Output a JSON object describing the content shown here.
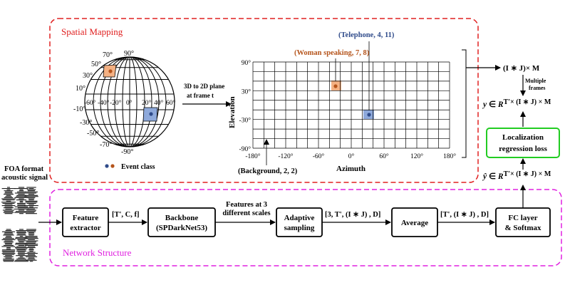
{
  "colors": {
    "spatial_border": "#e02020",
    "network_border": "#e020e0",
    "loss_border": "#22cc22",
    "telephone": "#2f4b8a",
    "woman": "#b5541b",
    "telephone_fill": "#8ea9db",
    "woman_fill": "#f4b183"
  },
  "spatial_section": {
    "title": "Spatial Mapping"
  },
  "network_section": {
    "title": "Network Structure"
  },
  "sphere": {
    "top_label": "90°",
    "bottom_label": "-90°",
    "lat_labels_left": [
      "70°",
      "50°",
      "30°",
      "10°",
      "-10°",
      "-30°",
      "-50°",
      "-70°"
    ],
    "lon_labels": [
      "-60°",
      "-40°",
      "-20°",
      "0°",
      "20°",
      "40°",
      "60°"
    ],
    "event_class_label": "Event class"
  },
  "projection_arrow_label": [
    "3D to 2D plane",
    "at frame t"
  ],
  "grid": {
    "y_label": "Elevation",
    "x_label": "Azimuth",
    "y_ticks": [
      "90°",
      "30°",
      "-30°",
      "-90°"
    ],
    "x_ticks": [
      "-180°",
      "-120°",
      "-60°",
      "0°",
      "60°",
      "120°",
      "180°"
    ],
    "annotations": {
      "telephone": "(Telephone, 4, 11)",
      "woman": "(Woman speaking, 7, 8)",
      "background": "(Background, 2, 2)"
    }
  },
  "right_side": {
    "output_dim": "(I ∗ J)× M",
    "multiple_frames": [
      "Multiple",
      "frames"
    ],
    "y_formula": "y ∈ R^T'× (I ∗ J) × M",
    "y_hat_formula": "ŷ ∈ R^T'× (I ∗ J) × M",
    "loss_box": [
      "Localization",
      "regression loss"
    ]
  },
  "input_label": [
    "FOA format",
    "acoustic signal"
  ],
  "pipeline": {
    "feature_extractor": [
      "Feature",
      "extractor"
    ],
    "edge1": "[T', C, f]",
    "backbone": [
      "Backbone",
      "(SPDarkNet53)"
    ],
    "edge2": [
      "Features at 3",
      "different scales"
    ],
    "adaptive_sampling": [
      "Adaptive",
      "sampling"
    ],
    "edge3": "[3, T', (I ∗ J) , D]",
    "average": "Average",
    "edge4": "[T', (I ∗ J) , D]",
    "fc_layer": [
      "FC layer",
      "& Softmax"
    ]
  }
}
